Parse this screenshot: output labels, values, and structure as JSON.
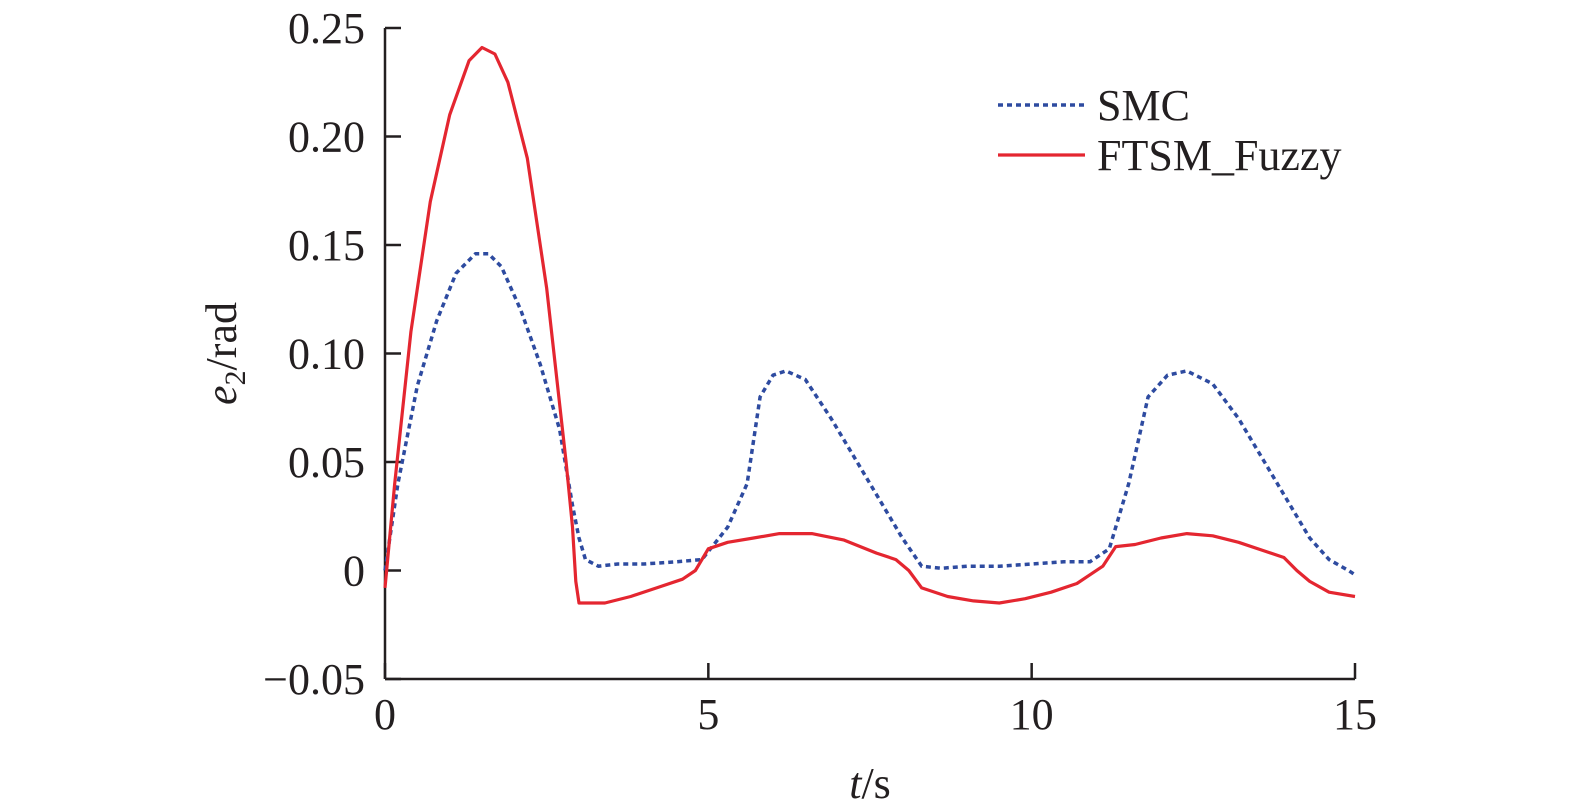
{
  "chart_data": {
    "type": "line",
    "xlabel_italic": "t",
    "xlabel_rest": "/s",
    "ylabel_italic": "e",
    "ylabel_sub": "2",
    "ylabel_rest": "/rad",
    "xlim": [
      0,
      15
    ],
    "ylim": [
      -0.05,
      0.25
    ],
    "xticks": [
      0,
      5,
      10,
      15
    ],
    "xtick_labels": [
      "0",
      "5",
      "10",
      "15"
    ],
    "yticks": [
      -0.05,
      0,
      0.05,
      0.1,
      0.15,
      0.2,
      0.25
    ],
    "ytick_labels": [
      "−0.05",
      "0",
      "0.05",
      "0.10",
      "0.15",
      "0.20",
      "0.25"
    ],
    "grid": false,
    "legend_position": "top-right",
    "series": [
      {
        "name": "SMC",
        "color": "#2e4ba0",
        "style": "dotted",
        "x": [
          0,
          0.2,
          0.5,
          0.8,
          1.1,
          1.4,
          1.6,
          1.8,
          2.1,
          2.4,
          2.7,
          2.9,
          3.0,
          3.1,
          3.3,
          3.6,
          4.0,
          4.5,
          4.9,
          5.3,
          5.6,
          5.8,
          6.0,
          6.2,
          6.5,
          6.9,
          7.3,
          7.7,
          8.0,
          8.3,
          8.6,
          9.0,
          9.5,
          10.0,
          10.5,
          10.9,
          11.2,
          11.5,
          11.8,
          12.1,
          12.4,
          12.8,
          13.2,
          13.6,
          14.0,
          14.3,
          14.6,
          14.9,
          15.0
        ],
        "y": [
          0.0,
          0.04,
          0.085,
          0.115,
          0.137,
          0.146,
          0.146,
          0.14,
          0.12,
          0.095,
          0.065,
          0.03,
          0.015,
          0.005,
          0.002,
          0.003,
          0.003,
          0.004,
          0.005,
          0.02,
          0.04,
          0.08,
          0.09,
          0.092,
          0.088,
          0.07,
          0.05,
          0.03,
          0.015,
          0.002,
          0.001,
          0.002,
          0.002,
          0.003,
          0.004,
          0.004,
          0.01,
          0.04,
          0.08,
          0.09,
          0.092,
          0.086,
          0.07,
          0.05,
          0.03,
          0.015,
          0.005,
          0.0,
          -0.002
        ]
      },
      {
        "name": "FTSM_Fuzzy",
        "color": "#e42630",
        "style": "solid",
        "x": [
          0,
          0.15,
          0.4,
          0.7,
          1.0,
          1.3,
          1.5,
          1.7,
          1.9,
          2.2,
          2.5,
          2.8,
          2.9,
          2.95,
          3.0,
          3.1,
          3.4,
          3.8,
          4.2,
          4.6,
          4.8,
          5.0,
          5.3,
          5.7,
          6.1,
          6.6,
          7.1,
          7.6,
          7.9,
          8.1,
          8.3,
          8.7,
          9.1,
          9.5,
          9.9,
          10.3,
          10.7,
          10.9,
          11.1,
          11.3,
          11.6,
          12.0,
          12.4,
          12.8,
          13.2,
          13.6,
          13.9,
          14.1,
          14.3,
          14.6,
          15.0
        ],
        "y": [
          -0.008,
          0.04,
          0.11,
          0.17,
          0.21,
          0.235,
          0.241,
          0.238,
          0.225,
          0.19,
          0.13,
          0.05,
          0.02,
          -0.005,
          -0.015,
          -0.015,
          -0.015,
          -0.012,
          -0.008,
          -0.004,
          0.0,
          0.01,
          0.013,
          0.015,
          0.017,
          0.017,
          0.014,
          0.008,
          0.005,
          0.0,
          -0.008,
          -0.012,
          -0.014,
          -0.015,
          -0.013,
          -0.01,
          -0.006,
          -0.002,
          0.002,
          0.011,
          0.012,
          0.015,
          0.017,
          0.016,
          0.013,
          0.009,
          0.006,
          0.0,
          -0.005,
          -0.01,
          -0.012
        ]
      }
    ]
  }
}
